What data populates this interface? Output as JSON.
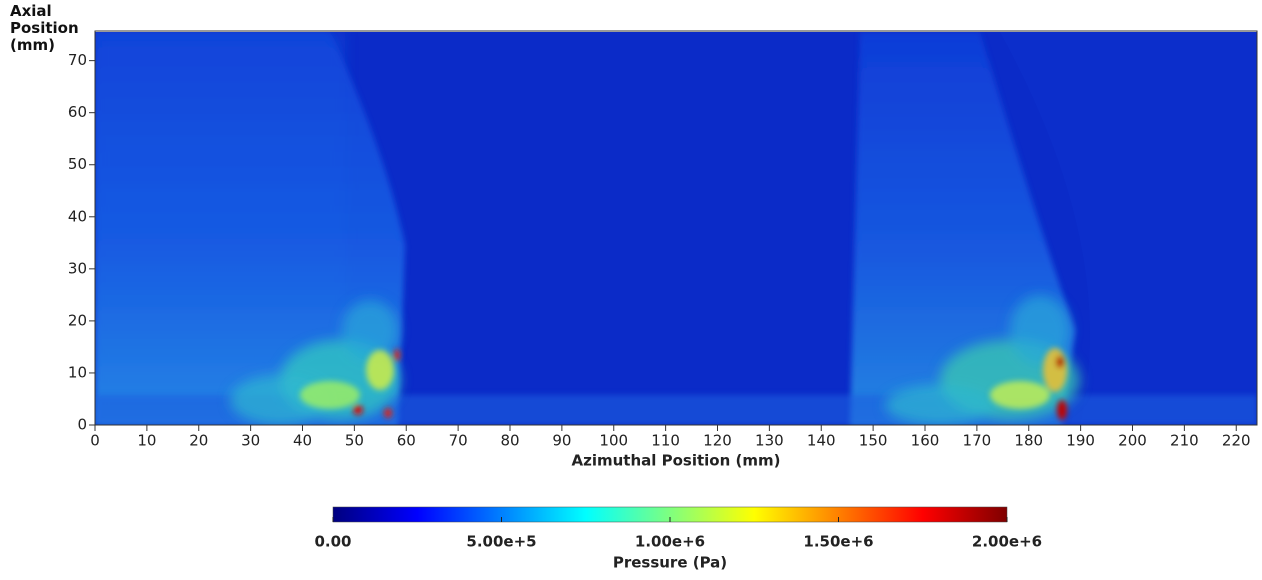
{
  "chart_data": {
    "type": "heatmap",
    "x_label": "Azimuthal Position (mm)",
    "y_label": "Axial Position (mm)",
    "xlim": [
      0,
      224
    ],
    "ylim": [
      0,
      75.5
    ],
    "xticks": [
      0,
      10,
      20,
      30,
      40,
      50,
      60,
      70,
      80,
      90,
      100,
      110,
      120,
      130,
      140,
      150,
      160,
      170,
      180,
      190,
      200,
      210,
      220
    ],
    "yticks": [
      0,
      10,
      20,
      30,
      40,
      50,
      60,
      70
    ],
    "colorbar": {
      "label": "Pressure (Pa)",
      "lim": [
        0,
        2000000
      ],
      "ticks": [
        {
          "value": 0,
          "label": "0.00"
        },
        {
          "value": 500000,
          "label": "5.00e+5"
        },
        {
          "value": 1000000,
          "label": "1.00e+6"
        },
        {
          "value": 1500000,
          "label": "1.50e+6"
        },
        {
          "value": 2000000,
          "label": "2.00e+6"
        }
      ],
      "colormap": [
        "#00007f",
        "#0000ff",
        "#0080ff",
        "#00ffff",
        "#7fff7f",
        "#ffff00",
        "#ff8000",
        "#ff0000",
        "#7f0000"
      ]
    }
  }
}
